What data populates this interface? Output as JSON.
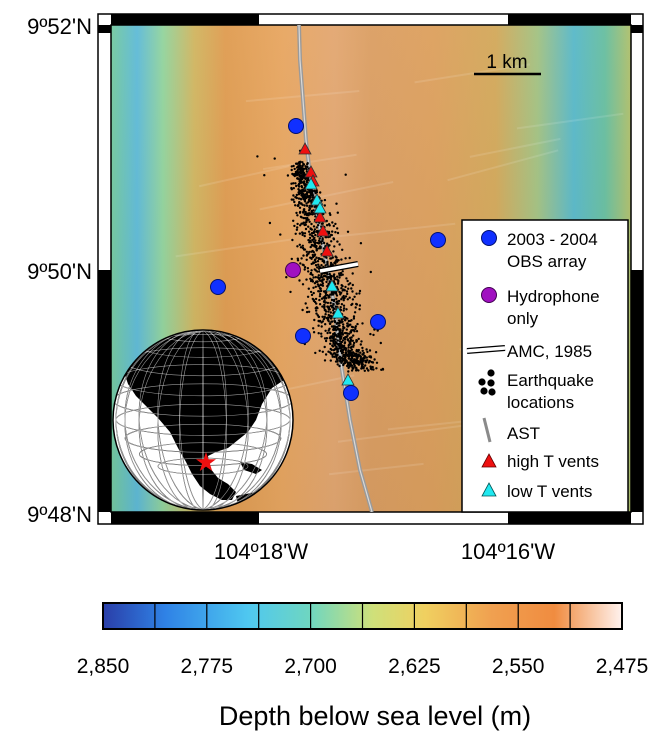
{
  "map": {
    "lat_labels": [
      "9º52'N",
      "9º50'N",
      "9º48'N"
    ],
    "lon_labels": [
      "104º18'W",
      "104º16'W"
    ],
    "scale_bar_label": "1 km",
    "colors": {
      "deep": "#2050c8",
      "shallow": "#fff6f0",
      "obs": "#1030ff",
      "hydrophone": "#a010c0",
      "high_t": "#ee1010",
      "low_t": "#20e8f0",
      "ast": "#9a9a9a"
    },
    "legend": {
      "items": [
        {
          "key": "obs",
          "lines": [
            "2003 - 2004",
            "OBS array"
          ]
        },
        {
          "key": "hydrophone",
          "lines": [
            "Hydrophone",
            "only"
          ]
        },
        {
          "key": "amc",
          "lines": [
            "AMC, 1985"
          ]
        },
        {
          "key": "quake",
          "lines": [
            "Earthquake",
            "locations"
          ]
        },
        {
          "key": "ast",
          "lines": [
            "AST"
          ]
        },
        {
          "key": "high_t",
          "lines": [
            "high T vents"
          ]
        },
        {
          "key": "low_t",
          "lines": [
            "low T vents"
          ]
        }
      ]
    },
    "inset": {
      "icon": "globe-icon",
      "marker": "red-star-icon"
    }
  },
  "colorbar": {
    "ticks": [
      "2,850",
      "2,775",
      "2,700",
      "2,625",
      "2,550",
      "2,475"
    ],
    "title": "Depth below sea level (m)",
    "stops": [
      "#2a3ea8",
      "#2f82e6",
      "#4fc8f0",
      "#6fd6c0",
      "#cfe07a",
      "#f0d060",
      "#f0a050",
      "#f08c40",
      "#fff2ee"
    ]
  }
}
